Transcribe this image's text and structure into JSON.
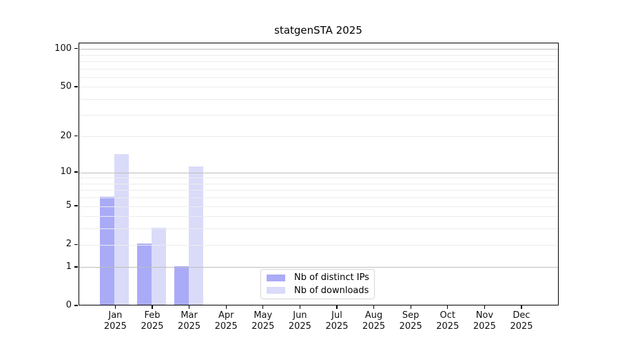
{
  "chart_data": {
    "type": "bar",
    "title": "statgenSTA 2025",
    "scale": "log1p",
    "grid": "on",
    "legend_position": "bottom-center",
    "categories": [
      "Jan",
      "Feb",
      "Mar",
      "Apr",
      "May",
      "Jun",
      "Jul",
      "Aug",
      "Sep",
      "Oct",
      "Nov",
      "Dec"
    ],
    "category_year": "2025",
    "series": [
      {
        "name": "Nb of distinct IPs",
        "color": "#aaabf7",
        "values": [
          6,
          2,
          1,
          0,
          0,
          0,
          0,
          0,
          0,
          0,
          0,
          0
        ]
      },
      {
        "name": "Nb of downloads",
        "color": "#dadbf9",
        "values": [
          14,
          3,
          11,
          0,
          0,
          0,
          0,
          0,
          0,
          0,
          0,
          0
        ]
      }
    ],
    "xlabel": "",
    "ylabel": "",
    "y_ticks": [
      0,
      1,
      2,
      5,
      10,
      20,
      50,
      100
    ],
    "ylim": [
      0,
      110
    ],
    "gridlines_major": [
      1,
      10,
      100
    ],
    "gridlines_minor": [
      2,
      3,
      4,
      5,
      6,
      7,
      8,
      9,
      20,
      30,
      40,
      50,
      60,
      70,
      80,
      90
    ]
  },
  "colors": {
    "background": "#ffffff",
    "axis": "#000000",
    "grid_major": "#bdbdbd",
    "grid_minor": "#ececec",
    "tick_text": "#0f0f0f",
    "legend_border": "#d6d6d6"
  }
}
